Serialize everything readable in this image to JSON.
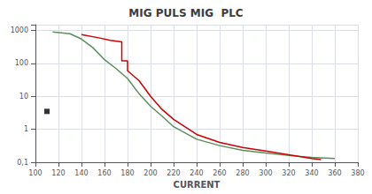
{
  "chart_data": {
    "type": "line",
    "title": "MIG PULS MIG  PLC",
    "xlabel": "CURRENT",
    "log": "y",
    "grid": true,
    "xlim": [
      100,
      380
    ],
    "xticks": [
      100,
      120,
      140,
      160,
      180,
      200,
      220,
      240,
      260,
      280,
      300,
      320,
      340,
      360,
      380
    ],
    "ylim": [
      0.1,
      1500
    ],
    "yticks": [
      {
        "value": 0.1,
        "label": "0,1"
      },
      1,
      10,
      100,
      1000
    ],
    "series": [
      {
        "type": "line",
        "color": "#5a8f5a",
        "x": [
          115,
          130,
          140,
          150,
          160,
          170,
          180,
          190,
          200,
          210,
          220,
          240,
          260,
          280,
          300,
          320,
          340,
          360
        ],
        "values": [
          900,
          800,
          550,
          300,
          130,
          70,
          35,
          12,
          5,
          2.5,
          1.2,
          0.5,
          0.32,
          0.23,
          0.19,
          0.16,
          0.14,
          0.13
        ]
      },
      {
        "type": "line",
        "color": "#cc0000",
        "x": [
          140,
          155,
          165,
          175,
          175,
          180,
          180,
          190,
          200,
          210,
          220,
          240,
          260,
          280,
          300,
          320,
          340,
          348
        ],
        "values": [
          750,
          600,
          500,
          450,
          120,
          120,
          60,
          30,
          10,
          4,
          2,
          0.7,
          0.4,
          0.28,
          0.22,
          0.17,
          0.13,
          0.12
        ]
      },
      {
        "type": "scatter",
        "color": "black",
        "marker": "square",
        "x": [
          110
        ],
        "values": [
          3.5
        ]
      }
    ]
  }
}
